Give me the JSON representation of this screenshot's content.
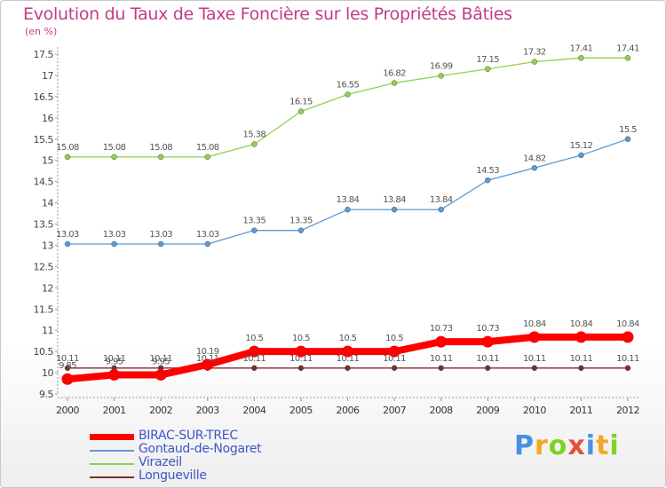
{
  "chart_data": {
    "type": "line",
    "title": "Evolution du Taux de Taxe Foncière sur les Propriétés Bâties",
    "ylabel": "(en %)",
    "x": [
      "2000",
      "2001",
      "2002",
      "2003",
      "2004",
      "2005",
      "2006",
      "2007",
      "2008",
      "2009",
      "2010",
      "2011",
      "2012"
    ],
    "yticks": [
      "9.5",
      "10",
      "10.5",
      "11",
      "11.5",
      "12",
      "12.5",
      "13",
      "13.5",
      "14",
      "14.5",
      "15",
      "15.5",
      "16",
      "16.5",
      "17",
      "17.5"
    ],
    "ylim": [
      9.5,
      17.5
    ],
    "grid": false,
    "legend_position": "bottom-left",
    "series": [
      {
        "name": "BIRAC-SUR-TREC",
        "color": "#ff0000",
        "values": [
          9.85,
          9.95,
          9.95,
          10.19,
          10.5,
          10.5,
          10.5,
          10.5,
          10.73,
          10.73,
          10.84,
          10.84,
          10.84
        ],
        "labels": [
          "9.85",
          "9.95",
          "9.95",
          "10.19",
          "10.5",
          "10.5",
          "10.5",
          "10.5",
          "10.73",
          "10.73",
          "10.84",
          "10.84",
          "10.84"
        ]
      },
      {
        "name": "Gontaud-de-Nogaret",
        "color": "#5b9bd5",
        "values": [
          13.03,
          13.03,
          13.03,
          13.03,
          13.35,
          13.35,
          13.84,
          13.84,
          13.84,
          14.53,
          14.82,
          15.12,
          15.5
        ],
        "labels": [
          "13.03",
          "13.03",
          "13.03",
          "13.03",
          "13.35",
          "13.35",
          "13.84",
          "13.84",
          "13.84",
          "14.53",
          "14.82",
          "15.12",
          "15.5"
        ]
      },
      {
        "name": "Virazeil",
        "color": "#8fd14f",
        "values": [
          15.08,
          15.08,
          15.08,
          15.08,
          15.38,
          16.15,
          16.55,
          16.82,
          16.99,
          17.15,
          17.32,
          17.41,
          17.41
        ],
        "labels": [
          "15.08",
          "15.08",
          "15.08",
          "15.08",
          "15.38",
          "16.15",
          "16.55",
          "16.82",
          "16.99",
          "17.15",
          "17.32",
          "17.41",
          "17.41"
        ]
      },
      {
        "name": "Longueville",
        "color": "#7a2e2e",
        "values": [
          10.11,
          10.11,
          10.11,
          10.11,
          10.11,
          10.11,
          10.11,
          10.11,
          10.11,
          10.11,
          10.11,
          10.11,
          10.11
        ],
        "labels": [
          "10.11",
          "10.11",
          "10.11",
          "10.11",
          "10.11",
          "10.11",
          "10.11",
          "10.11",
          "10.11",
          "10.11",
          "10.11",
          "10.11",
          "10.11"
        ]
      }
    ]
  },
  "logo": {
    "letters": [
      "P",
      "r",
      "o",
      "x",
      "i",
      "t",
      "i"
    ],
    "colors": [
      "#4a90e2",
      "#f5a623",
      "#7ed321",
      "#e94e3c",
      "#4a90e2",
      "#f5a623",
      "#7ed321"
    ]
  }
}
